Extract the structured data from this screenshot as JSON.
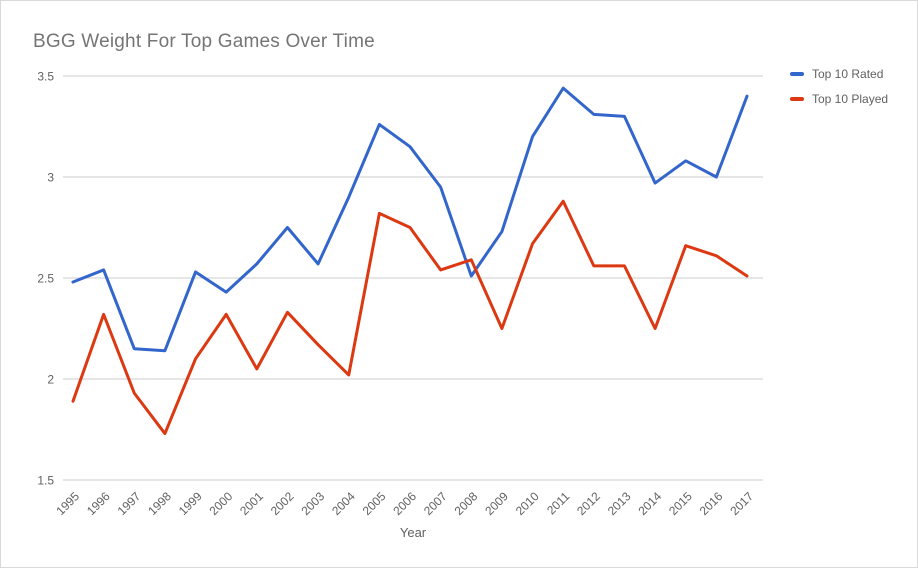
{
  "window": {
    "background": "#ffffff",
    "border_color": "#d9d9d9"
  },
  "chart_data": {
    "type": "line",
    "title": "BGG Weight For Top Games Over Time",
    "xlabel": "Year",
    "ylabel": "",
    "x": [
      1995,
      1996,
      1997,
      1998,
      1999,
      2000,
      2001,
      2002,
      2003,
      2004,
      2005,
      2006,
      2007,
      2008,
      2009,
      2010,
      2011,
      2012,
      2013,
      2014,
      2015,
      2016,
      2017
    ],
    "series": [
      {
        "name": "Top 10 Rated",
        "color": "#3366cc",
        "values": [
          2.48,
          2.54,
          2.15,
          2.14,
          2.53,
          2.43,
          2.57,
          2.75,
          2.57,
          2.9,
          3.26,
          3.15,
          2.95,
          2.51,
          2.73,
          3.2,
          3.44,
          3.31,
          3.3,
          2.97,
          3.08,
          3.0,
          3.4
        ]
      },
      {
        "name": "Top 10 Played",
        "color": "#dc3912",
        "values": [
          1.89,
          2.32,
          1.93,
          1.73,
          2.1,
          2.32,
          2.05,
          2.33,
          2.17,
          2.02,
          2.82,
          2.75,
          2.54,
          2.59,
          2.25,
          2.67,
          2.88,
          2.56,
          2.56,
          2.25,
          2.66,
          2.61,
          2.51
        ]
      }
    ],
    "ylim": [
      1.5,
      3.5
    ],
    "yticks": [
      1.5,
      2,
      2.5,
      3,
      3.5
    ],
    "grid": "horizontal",
    "legend_position": "right",
    "style": {
      "grid_color": "#cccccc",
      "tick_label_color": "#616161",
      "axis_title_color": "#616161",
      "title_color": "#757575",
      "line_width": 3
    }
  }
}
